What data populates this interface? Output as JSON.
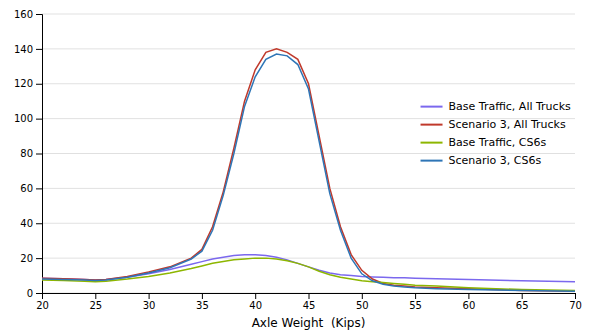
{
  "chart_data": {
    "type": "line",
    "x": [
      20,
      22,
      24,
      25,
      26,
      28,
      30,
      32,
      34,
      35,
      36,
      37,
      38,
      39,
      40,
      41,
      42,
      43,
      44,
      45,
      46,
      47,
      48,
      49,
      50,
      51,
      52,
      53,
      54,
      55,
      57,
      60,
      65,
      70
    ],
    "series": [
      {
        "name": "Base Traffic, All Trucks",
        "color": "#7B68EE",
        "values": [
          8.5,
          8.2,
          7.8,
          7.5,
          7.8,
          9.0,
          11.0,
          13.5,
          16.5,
          18.0,
          19.5,
          20.5,
          21.5,
          22.0,
          22.0,
          21.5,
          20.5,
          19.0,
          17.0,
          15.0,
          13.0,
          11.5,
          10.5,
          10.0,
          9.5,
          9.2,
          9.0,
          8.8,
          8.7,
          8.5,
          8.2,
          7.8,
          7.0,
          6.5
        ]
      },
      {
        "name": "Scenario 3, All Trucks",
        "color": "#C0392B",
        "values": [
          8.5,
          8.2,
          7.8,
          7.5,
          7.8,
          9.5,
          12.0,
          15.0,
          20.0,
          25.0,
          38.0,
          58.0,
          83.0,
          110.0,
          128.0,
          138.0,
          140.0,
          138.0,
          134.0,
          120.0,
          90.0,
          60.0,
          38.0,
          22.0,
          13.0,
          8.0,
          5.5,
          4.5,
          4.0,
          3.5,
          3.0,
          2.5,
          1.5,
          1.0
        ]
      },
      {
        "name": "Base Traffic, CS6s",
        "color": "#8DB600",
        "values": [
          7.5,
          7.2,
          6.8,
          6.5,
          6.8,
          8.0,
          9.5,
          11.5,
          14.0,
          15.5,
          17.0,
          18.0,
          19.0,
          19.5,
          20.0,
          20.0,
          19.5,
          18.5,
          17.0,
          15.0,
          12.5,
          10.5,
          9.0,
          8.0,
          7.0,
          6.5,
          6.0,
          5.5,
          5.0,
          4.5,
          4.0,
          3.0,
          2.0,
          1.5
        ]
      },
      {
        "name": "Scenario 3, CS6s",
        "color": "#2E75B6",
        "values": [
          8.0,
          7.8,
          7.5,
          7.2,
          7.5,
          9.0,
          11.5,
          14.5,
          19.5,
          24.0,
          36.0,
          56.0,
          80.0,
          107.0,
          124.0,
          134.0,
          137.0,
          136.0,
          131.0,
          117.0,
          87.0,
          57.0,
          36.0,
          20.0,
          11.0,
          7.0,
          5.0,
          4.0,
          3.5,
          3.0,
          2.5,
          2.0,
          1.5,
          1.0
        ]
      }
    ],
    "xlabel": "Axle Weight  (Kips)",
    "xlim": [
      20,
      70
    ],
    "ylim": [
      0,
      160
    ],
    "xticks": [
      20,
      25,
      30,
      35,
      40,
      45,
      50,
      55,
      60,
      65,
      70
    ],
    "yticks": [
      0,
      20,
      40,
      60,
      80,
      100,
      120,
      140,
      160
    ],
    "grid": true,
    "legend": "right"
  }
}
